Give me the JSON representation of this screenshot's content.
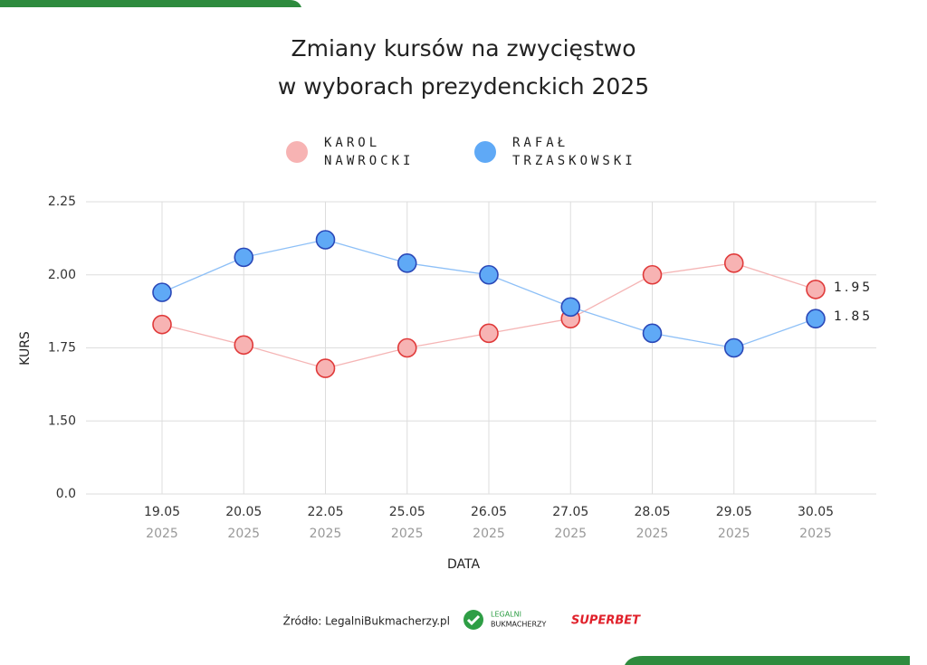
{
  "chart_data": {
    "type": "line",
    "title": [
      "Zmiany kursów na zwycięstwo",
      "w wyborach prezydenckich 2025"
    ],
    "categories": [
      "19.05",
      "20.05",
      "22.05",
      "25.05",
      "26.05",
      "27.05",
      "28.05",
      "29.05",
      "30.05"
    ],
    "category_sublabels": [
      "2025",
      "2025",
      "2025",
      "2025",
      "2025",
      "2025",
      "2025",
      "2025",
      "2025"
    ],
    "series": [
      {
        "name": "KAROL NAWROCKI",
        "color": "#e03a3a",
        "values": [
          1.83,
          1.76,
          1.68,
          1.75,
          1.8,
          1.85,
          2.0,
          2.04,
          1.95
        ],
        "value_labels": [
          null,
          null,
          null,
          null,
          null,
          null,
          null,
          null,
          "1.95"
        ]
      },
      {
        "name": "RAFAŁ TRZASKOWSKI",
        "color": "#2a48b8",
        "values": [
          1.94,
          2.06,
          2.12,
          2.04,
          2.0,
          1.89,
          1.8,
          1.75,
          1.85
        ],
        "value_labels": [
          null,
          null,
          null,
          null,
          null,
          null,
          null,
          null,
          "1.85"
        ]
      }
    ],
    "ylim": [
      0,
      2.25
    ],
    "yticks": [
      {
        "value": 0,
        "label": "0.0"
      },
      {
        "value": 1.5,
        "label": "1.50"
      },
      1.75,
      {
        "value": 2,
        "label": "2.00"
      },
      2.25
    ],
    "axis_break": true,
    "grid": true,
    "ylabel": "KURS",
    "xlabel": "DATA",
    "source": "Źródło: LegalniBukmacherzy.pl",
    "logos": [
      "LEGALNI",
      "BUKMACHERZY",
      "SUPERBET"
    ]
  }
}
